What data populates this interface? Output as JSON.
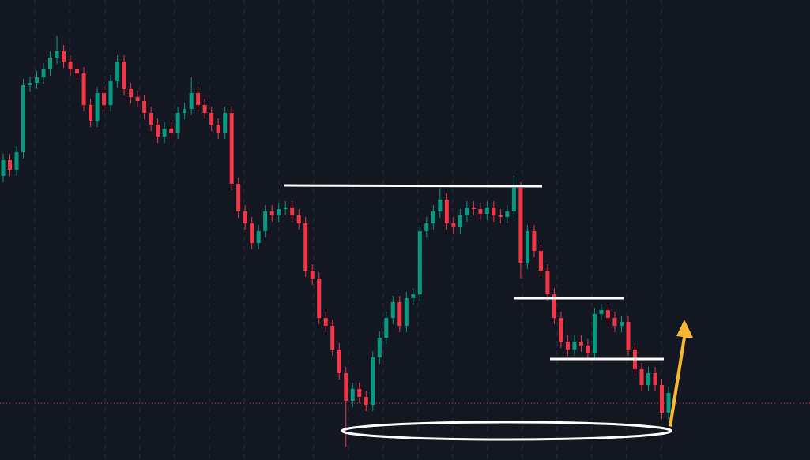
{
  "chart_data": {
    "type": "candlestick",
    "open": [
      360,
      380,
      368,
      390,
      475,
      478,
      485,
      495,
      510,
      518,
      505,
      495,
      490,
      450,
      430,
      465,
      450,
      480,
      505,
      470,
      460,
      455,
      440,
      425,
      410,
      420,
      415,
      440,
      445,
      465,
      450,
      440,
      425,
      415,
      440,
      350,
      315,
      300,
      275,
      290,
      315,
      310,
      318,
      320,
      310,
      300,
      240,
      230,
      180,
      170,
      140,
      110,
      75,
      90,
      80,
      70,
      130,
      155,
      180,
      200,
      170,
      205,
      210,
      290,
      300,
      315,
      330,
      300,
      295,
      310,
      320,
      318,
      312,
      320,
      310,
      308,
      315,
      345,
      250,
      290,
      265,
      240,
      210,
      180,
      150,
      140,
      150,
      145,
      135,
      185,
      190,
      180,
      170,
      175,
      140,
      115,
      95,
      110,
      95,
      60
    ],
    "high": [
      388,
      388,
      398,
      483,
      486,
      493,
      503,
      518,
      538,
      526,
      513,
      503,
      498,
      458,
      473,
      473,
      488,
      513,
      513,
      478,
      468,
      463,
      448,
      433,
      428,
      428,
      448,
      453,
      485,
      473,
      458,
      448,
      433,
      448,
      448,
      358,
      323,
      308,
      298,
      323,
      323,
      326,
      328,
      328,
      318,
      308,
      248,
      238,
      188,
      178,
      148,
      118,
      98,
      98,
      88,
      138,
      163,
      188,
      208,
      208,
      213,
      218,
      298,
      308,
      323,
      345,
      338,
      308,
      318,
      328,
      328,
      326,
      328,
      328,
      318,
      323,
      360,
      352,
      298,
      298,
      273,
      248,
      218,
      188,
      158,
      158,
      158,
      153,
      193,
      198,
      198,
      188,
      183,
      183,
      148,
      123,
      118,
      118,
      103,
      93
    ],
    "low": [
      352,
      360,
      360,
      382,
      467,
      470,
      477,
      487,
      502,
      497,
      487,
      482,
      442,
      422,
      422,
      442,
      442,
      472,
      462,
      452,
      447,
      432,
      417,
      402,
      402,
      407,
      407,
      432,
      437,
      442,
      432,
      417,
      407,
      407,
      342,
      307,
      292,
      267,
      267,
      282,
      302,
      302,
      310,
      302,
      292,
      232,
      222,
      172,
      162,
      132,
      102,
      17,
      67,
      72,
      62,
      62,
      122,
      147,
      172,
      162,
      162,
      197,
      202,
      282,
      292,
      307,
      292,
      287,
      287,
      302,
      310,
      304,
      304,
      302,
      300,
      300,
      307,
      230,
      242,
      257,
      232,
      202,
      172,
      142,
      132,
      132,
      137,
      127,
      127,
      177,
      172,
      162,
      162,
      132,
      107,
      87,
      87,
      87,
      52,
      52
    ],
    "close": [
      380,
      368,
      390,
      475,
      478,
      485,
      495,
      510,
      518,
      505,
      495,
      490,
      450,
      430,
      465,
      450,
      480,
      505,
      470,
      460,
      455,
      440,
      425,
      410,
      420,
      415,
      440,
      445,
      465,
      450,
      440,
      425,
      415,
      440,
      350,
      315,
      300,
      275,
      290,
      315,
      310,
      318,
      320,
      310,
      300,
      240,
      230,
      180,
      170,
      140,
      110,
      75,
      90,
      80,
      70,
      130,
      155,
      180,
      200,
      170,
      205,
      210,
      290,
      300,
      315,
      330,
      300,
      295,
      310,
      320,
      318,
      312,
      320,
      310,
      308,
      315,
      345,
      250,
      290,
      265,
      240,
      210,
      180,
      150,
      140,
      150,
      145,
      135,
      185,
      190,
      180,
      170,
      175,
      140,
      115,
      95,
      110,
      95,
      60,
      85
    ],
    "up_color": "#089981",
    "down_color": "#f23645",
    "ylim": [
      0,
      583
    ]
  }
}
